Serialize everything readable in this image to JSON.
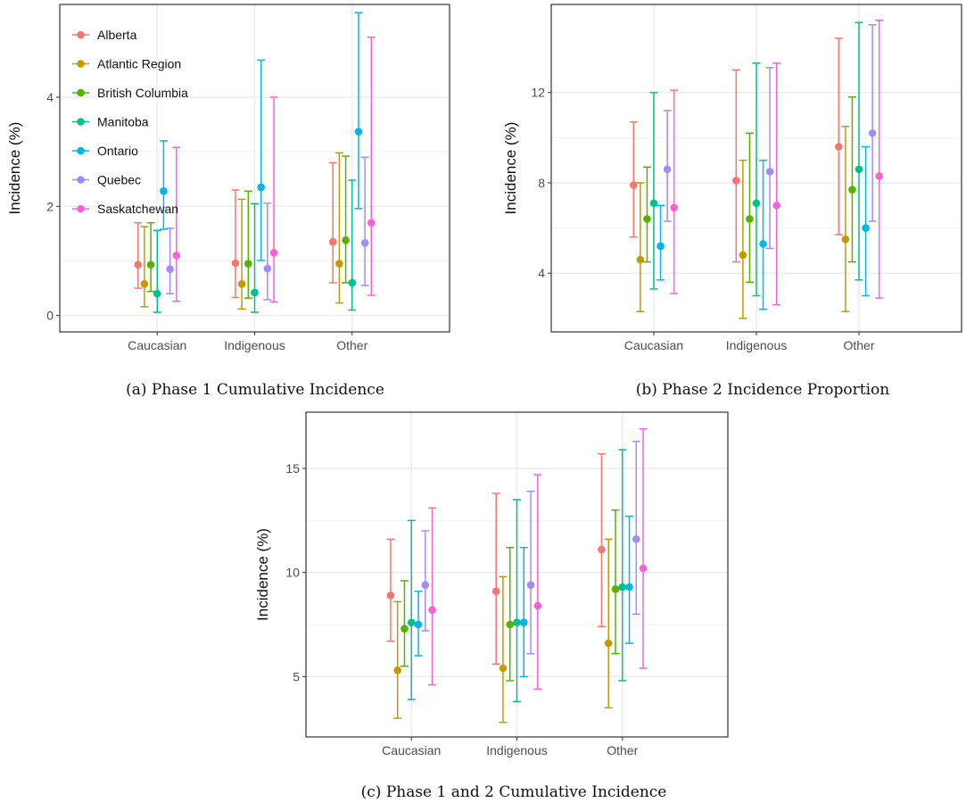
{
  "figure": {
    "series_names": [
      "Alberta",
      "Atlantic Region",
      "British Columbia",
      "Manitoba",
      "Ontario",
      "Quebec",
      "Saskatchewan"
    ],
    "series_colors": [
      "#F8766D",
      "#C49A00",
      "#53B400",
      "#00C094",
      "#00B6EB",
      "#A58AFF",
      "#FB61D7"
    ],
    "legend_position": "top-left"
  },
  "chart_data": [
    {
      "type": "scatter",
      "title": "",
      "caption": "(a) Phase 1 Cumulative Incidence",
      "xlabel": "",
      "ylabel": "Incidence (%)",
      "categories": [
        "Caucasian",
        "Indigenous",
        "Other"
      ],
      "ylim": [
        -0.3,
        5.7
      ],
      "yticks": [
        0,
        2,
        4
      ],
      "ytick_labels": [
        "0",
        "2",
        "4"
      ],
      "grid": true,
      "show_legend": true,
      "series": [
        {
          "name": "Alberta",
          "values": [
            0.93,
            0.96,
            1.35
          ],
          "lower": [
            0.5,
            0.33,
            0.6
          ],
          "upper": [
            1.7,
            2.3,
            2.8
          ]
        },
        {
          "name": "Atlantic Region",
          "values": [
            0.58,
            0.58,
            0.95
          ],
          "lower": [
            0.16,
            0.12,
            0.23
          ],
          "upper": [
            1.63,
            2.13,
            2.98
          ]
        },
        {
          "name": "British Columbia",
          "values": [
            0.93,
            0.95,
            1.38
          ],
          "lower": [
            0.44,
            0.32,
            0.6
          ],
          "upper": [
            1.7,
            2.28,
            2.92
          ]
        },
        {
          "name": "Manitoba",
          "values": [
            0.4,
            0.42,
            0.6
          ],
          "lower": [
            0.06,
            0.06,
            0.1
          ],
          "upper": [
            1.56,
            2.05,
            2.48
          ]
        },
        {
          "name": "Ontario",
          "values": [
            2.28,
            2.35,
            3.37
          ],
          "lower": [
            1.58,
            1.01,
            1.96
          ],
          "upper": [
            3.2,
            4.68,
            5.55
          ]
        },
        {
          "name": "Quebec",
          "values": [
            0.85,
            0.86,
            1.33
          ],
          "lower": [
            0.4,
            0.29,
            0.55
          ],
          "upper": [
            1.6,
            2.06,
            2.9
          ]
        },
        {
          "name": "Saskatchewan",
          "values": [
            1.1,
            1.15,
            1.7
          ],
          "lower": [
            0.26,
            0.25,
            0.37
          ],
          "upper": [
            3.08,
            4.0,
            5.1
          ]
        }
      ]
    },
    {
      "type": "scatter",
      "title": "",
      "caption": "(b) Phase 2 Incidence Proportion",
      "xlabel": "",
      "ylabel": "Incidence (%)",
      "categories": [
        "Caucasian",
        "Indigenous",
        "Other"
      ],
      "ylim": [
        1.4,
        15.9
      ],
      "yticks": [
        4,
        8,
        12
      ],
      "ytick_labels": [
        "4",
        "8",
        "12"
      ],
      "grid": true,
      "show_legend": false,
      "series": [
        {
          "name": "Alberta",
          "values": [
            7.9,
            8.1,
            9.6
          ],
          "lower": [
            5.6,
            4.5,
            5.7
          ],
          "upper": [
            10.7,
            13.0,
            14.4
          ]
        },
        {
          "name": "Atlantic Region",
          "values": [
            4.6,
            4.8,
            5.5
          ],
          "lower": [
            2.3,
            2.0,
            2.3
          ],
          "upper": [
            8.0,
            9.0,
            10.5
          ]
        },
        {
          "name": "British Columbia",
          "values": [
            6.4,
            6.4,
            7.7
          ],
          "lower": [
            4.5,
            3.6,
            4.5
          ],
          "upper": [
            8.7,
            10.2,
            11.8
          ]
        },
        {
          "name": "Manitoba",
          "values": [
            7.1,
            7.1,
            8.6
          ],
          "lower": [
            3.3,
            3.0,
            3.7
          ],
          "upper": [
            12.0,
            13.3,
            15.1
          ]
        },
        {
          "name": "Ontario",
          "values": [
            5.2,
            5.3,
            6.0
          ],
          "lower": [
            3.7,
            2.4,
            3.0
          ],
          "upper": [
            7.0,
            9.0,
            9.6
          ]
        },
        {
          "name": "Quebec",
          "values": [
            8.6,
            8.5,
            10.2
          ],
          "lower": [
            6.3,
            5.1,
            6.3
          ],
          "upper": [
            11.2,
            13.1,
            15.0
          ]
        },
        {
          "name": "Saskatchewan",
          "values": [
            6.9,
            7.0,
            8.3
          ],
          "lower": [
            3.1,
            2.6,
            2.9
          ],
          "upper": [
            12.1,
            13.3,
            15.2
          ]
        }
      ]
    },
    {
      "type": "scatter",
      "title": "",
      "caption": "(c) Phase 1 and 2 Cumulative Incidence",
      "xlabel": "",
      "ylabel": "Incidence (%)",
      "categories": [
        "Caucasian",
        "Indigenous",
        "Other"
      ],
      "ylim": [
        2.1,
        17.7
      ],
      "yticks": [
        5,
        10,
        15
      ],
      "ytick_labels": [
        "5",
        "10",
        "15"
      ],
      "grid": true,
      "show_legend": false,
      "series": [
        {
          "name": "Alberta",
          "values": [
            8.9,
            9.1,
            11.1
          ],
          "lower": [
            6.7,
            5.6,
            7.4
          ],
          "upper": [
            11.6,
            13.8,
            15.7
          ]
        },
        {
          "name": "Atlantic Region",
          "values": [
            5.3,
            5.4,
            6.6
          ],
          "lower": [
            3.0,
            2.8,
            3.5
          ],
          "upper": [
            8.6,
            9.8,
            11.6
          ]
        },
        {
          "name": "British Columbia",
          "values": [
            7.3,
            7.5,
            9.2
          ],
          "lower": [
            5.5,
            4.8,
            6.1
          ],
          "upper": [
            9.6,
            11.2,
            13.0
          ]
        },
        {
          "name": "Manitoba",
          "values": [
            7.6,
            7.6,
            9.3
          ],
          "lower": [
            3.9,
            3.8,
            4.8
          ],
          "upper": [
            12.5,
            13.5,
            15.9
          ]
        },
        {
          "name": "Ontario",
          "values": [
            7.5,
            7.6,
            9.3
          ],
          "lower": [
            6.0,
            5.0,
            6.6
          ],
          "upper": [
            9.1,
            11.2,
            12.7
          ]
        },
        {
          "name": "Quebec",
          "values": [
            9.4,
            9.4,
            11.6
          ],
          "lower": [
            7.2,
            6.1,
            8.0
          ],
          "upper": [
            12.0,
            13.9,
            16.3
          ]
        },
        {
          "name": "Saskatchewan",
          "values": [
            8.2,
            8.4,
            10.2
          ],
          "lower": [
            4.6,
            4.4,
            5.4
          ],
          "upper": [
            13.1,
            14.7,
            16.9
          ]
        }
      ]
    }
  ]
}
